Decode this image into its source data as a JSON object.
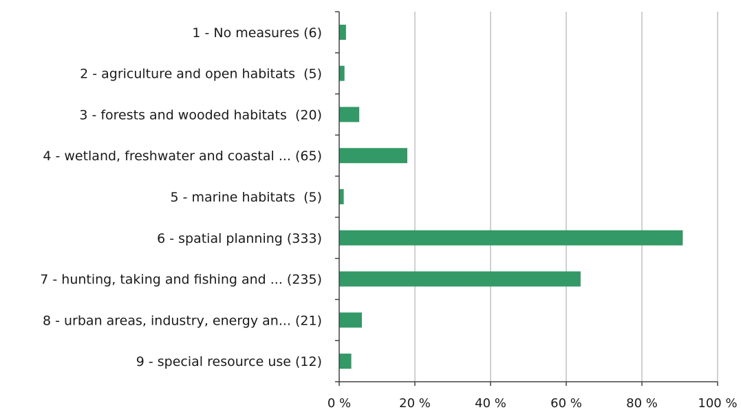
{
  "chart_data": {
    "type": "bar",
    "orientation": "horizontal",
    "categories": [
      "1 - No measures (6)",
      "2 - agriculture and open habitats  (5)",
      "3 - forests and wooded habitats  (20)",
      "4 - wetland, freshwater and coastal ... (65)",
      "5 - marine habitats  (5)",
      "6 - spatial planning (333)",
      "7 - hunting, taking and fishing and ... (235)",
      "8 - urban areas, industry, energy an... (21)",
      "9 - special resource use (12)"
    ],
    "values": [
      1.8,
      1.4,
      5.3,
      18.0,
      1.2,
      90.8,
      63.8,
      6.0,
      3.2
    ],
    "xlim": [
      0,
      100
    ],
    "xticks": [
      0,
      20,
      40,
      60,
      80,
      100
    ],
    "xtick_labels": [
      "0 %",
      "20 %",
      "40 %",
      "60 %",
      "80 %",
      "100 %"
    ],
    "bar_color": "#339966",
    "grid": "vertical",
    "grid_color": "#c0c0c0",
    "axis_color": "#404040",
    "title": "",
    "xlabel": "",
    "ylabel": ""
  }
}
